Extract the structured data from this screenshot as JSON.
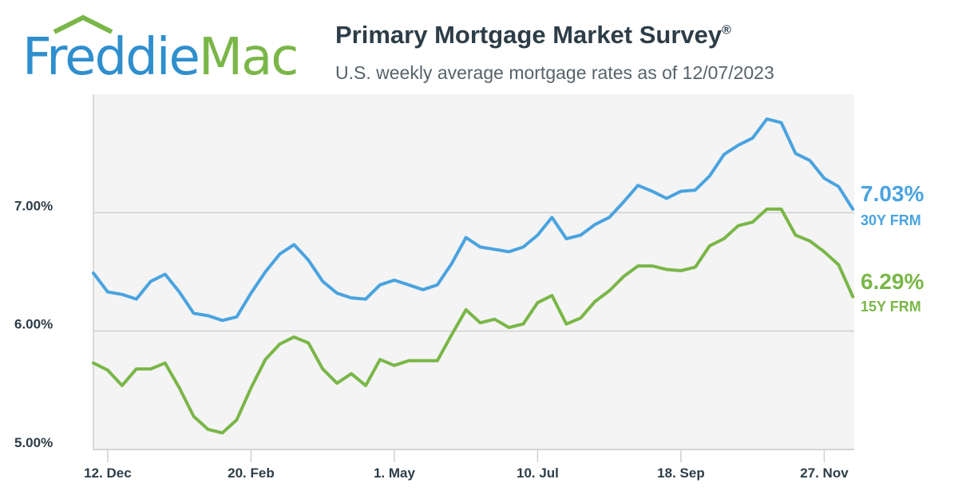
{
  "brand": {
    "word1": "Freddie",
    "word2": "Mac",
    "roof_icon": "house-roof-icon",
    "colors": {
      "blue": "#2f8fce",
      "green": "#7ab648"
    }
  },
  "header": {
    "title": "Primary Mortgage Market Survey",
    "title_mark": "®",
    "subtitle": "U.S. weekly average mortgage rates as of 12/07/2023"
  },
  "chart_data": {
    "type": "line",
    "ylim": [
      5.0,
      8.0
    ],
    "yticks": [
      {
        "value": 5.0,
        "label": "5.00%"
      },
      {
        "value": 6.0,
        "label": "6.00%"
      },
      {
        "value": 7.0,
        "label": "7.00%"
      }
    ],
    "xticks": [
      {
        "index": 1,
        "label": "12. Dec"
      },
      {
        "index": 11,
        "label": "20. Feb"
      },
      {
        "index": 21,
        "label": "1. May"
      },
      {
        "index": 31,
        "label": "10. Jul"
      },
      {
        "index": 41,
        "label": "18. Sep"
      },
      {
        "index": 51,
        "label": "27. Nov"
      }
    ],
    "grid": true,
    "legend": "right end labels",
    "series": [
      {
        "name": "30Y FRM",
        "last_label": "7.03%",
        "color": "#4aa3df",
        "values": [
          6.49,
          6.33,
          6.31,
          6.27,
          6.42,
          6.48,
          6.33,
          6.15,
          6.13,
          6.09,
          6.12,
          6.32,
          6.5,
          6.65,
          6.73,
          6.6,
          6.42,
          6.32,
          6.28,
          6.27,
          6.39,
          6.43,
          6.39,
          6.35,
          6.39,
          6.57,
          6.79,
          6.71,
          6.69,
          6.67,
          6.71,
          6.81,
          6.96,
          6.78,
          6.81,
          6.9,
          6.96,
          7.09,
          7.23,
          7.18,
          7.12,
          7.18,
          7.19,
          7.31,
          7.49,
          7.57,
          7.63,
          7.79,
          7.76,
          7.5,
          7.44,
          7.29,
          7.22,
          7.03
        ]
      },
      {
        "name": "15Y FRM",
        "last_label": "6.29%",
        "color": "#7ab648",
        "values": [
          5.73,
          5.67,
          5.54,
          5.68,
          5.68,
          5.73,
          5.52,
          5.28,
          5.17,
          5.14,
          5.25,
          5.52,
          5.76,
          5.89,
          5.95,
          5.9,
          5.68,
          5.56,
          5.64,
          5.54,
          5.76,
          5.71,
          5.75,
          5.75,
          5.75,
          5.97,
          6.18,
          6.07,
          6.1,
          6.03,
          6.06,
          6.24,
          6.3,
          6.06,
          6.11,
          6.25,
          6.34,
          6.46,
          6.55,
          6.55,
          6.52,
          6.51,
          6.54,
          6.72,
          6.78,
          6.89,
          6.92,
          7.03,
          7.03,
          6.81,
          6.76,
          6.67,
          6.56,
          6.29
        ]
      }
    ]
  }
}
